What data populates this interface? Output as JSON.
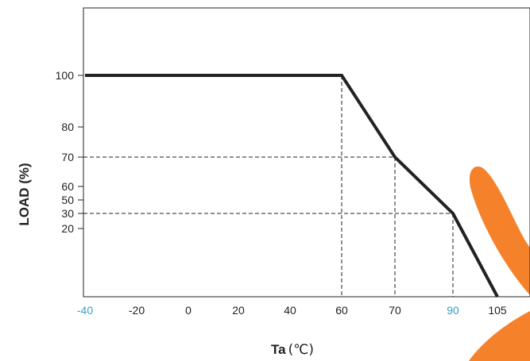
{
  "chart_data": {
    "type": "line",
    "ylabel": "LOAD (%)",
    "xlabel_main": "Ta",
    "xlabel_unit": "(℃)",
    "x_ticks": [
      {
        "label": "-40",
        "value": -40,
        "highlight": true
      },
      {
        "label": "-20",
        "value": -20,
        "highlight": false
      },
      {
        "label": "0",
        "value": 0,
        "highlight": false
      },
      {
        "label": "20",
        "value": 20,
        "highlight": false
      },
      {
        "label": "40",
        "value": 40,
        "highlight": false
      },
      {
        "label": "60",
        "value": 60,
        "highlight": false
      },
      {
        "label": "70",
        "value": 70,
        "highlight": false
      },
      {
        "label": "90",
        "value": 90,
        "highlight": true
      },
      {
        "label": "105",
        "value": 105,
        "highlight": false
      }
    ],
    "y_ticks": [
      {
        "label": "100",
        "value": 100
      },
      {
        "label": "80",
        "value": 80
      },
      {
        "label": "70",
        "value": 70
      },
      {
        "label": "60",
        "value": 60
      },
      {
        "label": "50",
        "value": 50
      },
      {
        "label": "30",
        "value": 30
      },
      {
        "label": "20",
        "value": 20
      }
    ],
    "series": [
      {
        "x": [
          -40,
          60,
          70,
          90,
          105
        ],
        "y": [
          100,
          100,
          70,
          30,
          0
        ]
      }
    ],
    "reference_lines": [
      {
        "x": 60,
        "y": 100
      },
      {
        "x": 70,
        "y": 70
      },
      {
        "x": 90,
        "y": 30
      }
    ],
    "colors": {
      "line": "#222222",
      "highlight_tick": "#3a9cc6",
      "watermark": "#f47a20"
    }
  }
}
